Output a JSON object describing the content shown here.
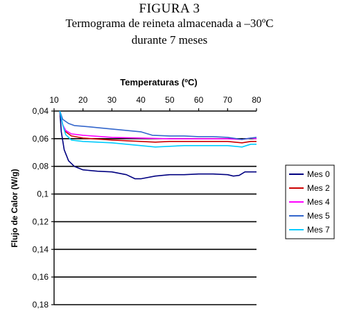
{
  "figure": {
    "label": "FIGURA 3",
    "subtitle_line1": "Termograma de reineta almacenada a –30ºC",
    "subtitle_line2": "durante 7 meses"
  },
  "chart_data": {
    "type": "line",
    "title": "",
    "xlabel": "Temperaturas (ºC)",
    "ylabel": "Flujo de Calor (W/g)",
    "x_axis_position": "top",
    "y_axis_inverted": true,
    "xlim": [
      10,
      80
    ],
    "ylim": [
      0.04,
      0.18
    ],
    "x_ticks": [
      10,
      20,
      30,
      40,
      50,
      60,
      70,
      80
    ],
    "x_tick_labels": [
      "10",
      "20",
      "30",
      "40",
      "50",
      "60",
      "70",
      "80"
    ],
    "y_ticks": [
      0.04,
      0.06,
      0.08,
      0.1,
      0.12,
      0.14,
      0.16,
      0.18
    ],
    "y_tick_labels": [
      "0,04",
      "0,06",
      "0,08",
      "0,1",
      "0,12",
      "0,14",
      "0,16",
      "0,18"
    ],
    "grid": "horizontal",
    "legend_position": "right",
    "series": [
      {
        "name": "Mes 0",
        "color": "#000080",
        "points": [
          [
            12,
            0.04
          ],
          [
            12.5,
            0.055
          ],
          [
            13.5,
            0.068
          ],
          [
            15,
            0.076
          ],
          [
            17,
            0.08
          ],
          [
            20,
            0.0825
          ],
          [
            25,
            0.0835
          ],
          [
            30,
            0.084
          ],
          [
            35,
            0.086
          ],
          [
            38,
            0.089
          ],
          [
            40,
            0.089
          ],
          [
            45,
            0.087
          ],
          [
            50,
            0.086
          ],
          [
            55,
            0.086
          ],
          [
            60,
            0.0855
          ],
          [
            65,
            0.0855
          ],
          [
            70,
            0.086
          ],
          [
            72,
            0.087
          ],
          [
            74,
            0.0865
          ],
          [
            76,
            0.084
          ],
          [
            80,
            0.084
          ]
        ]
      },
      {
        "name": "Mes 2",
        "color": "#cc0000",
        "points": [
          [
            12,
            0.04
          ],
          [
            13,
            0.05
          ],
          [
            14,
            0.055
          ],
          [
            16,
            0.058
          ],
          [
            20,
            0.0595
          ],
          [
            30,
            0.061
          ],
          [
            40,
            0.062
          ],
          [
            45,
            0.0625
          ],
          [
            50,
            0.062
          ],
          [
            60,
            0.062
          ],
          [
            70,
            0.062
          ],
          [
            75,
            0.063
          ],
          [
            78,
            0.062
          ],
          [
            80,
            0.062
          ]
        ]
      },
      {
        "name": "Mes 4",
        "color": "#ff00ff",
        "points": [
          [
            12,
            0.04
          ],
          [
            13,
            0.05
          ],
          [
            14,
            0.054
          ],
          [
            16,
            0.0565
          ],
          [
            20,
            0.0575
          ],
          [
            30,
            0.059
          ],
          [
            40,
            0.0595
          ],
          [
            50,
            0.06
          ],
          [
            60,
            0.06
          ],
          [
            70,
            0.06
          ],
          [
            75,
            0.0605
          ],
          [
            78,
            0.0595
          ],
          [
            80,
            0.06
          ]
        ]
      },
      {
        "name": "Mes 5",
        "color": "#3366cc",
        "points": [
          [
            12,
            0.04
          ],
          [
            13,
            0.046
          ],
          [
            15,
            0.049
          ],
          [
            17,
            0.0505
          ],
          [
            20,
            0.051
          ],
          [
            25,
            0.052
          ],
          [
            30,
            0.053
          ],
          [
            35,
            0.054
          ],
          [
            40,
            0.055
          ],
          [
            44,
            0.0575
          ],
          [
            50,
            0.058
          ],
          [
            55,
            0.058
          ],
          [
            60,
            0.0585
          ],
          [
            65,
            0.0585
          ],
          [
            70,
            0.059
          ],
          [
            75,
            0.0605
          ],
          [
            78,
            0.0595
          ],
          [
            80,
            0.059
          ]
        ]
      },
      {
        "name": "Mes 7",
        "color": "#00ccff",
        "points": [
          [
            12,
            0.04
          ],
          [
            13,
            0.05
          ],
          [
            14,
            0.057
          ],
          [
            16,
            0.061
          ],
          [
            20,
            0.062
          ],
          [
            25,
            0.0625
          ],
          [
            30,
            0.063
          ],
          [
            35,
            0.064
          ],
          [
            40,
            0.065
          ],
          [
            45,
            0.066
          ],
          [
            50,
            0.0655
          ],
          [
            55,
            0.065
          ],
          [
            60,
            0.065
          ],
          [
            65,
            0.065
          ],
          [
            70,
            0.065
          ],
          [
            75,
            0.066
          ],
          [
            78,
            0.064
          ],
          [
            80,
            0.064
          ]
        ]
      }
    ]
  }
}
